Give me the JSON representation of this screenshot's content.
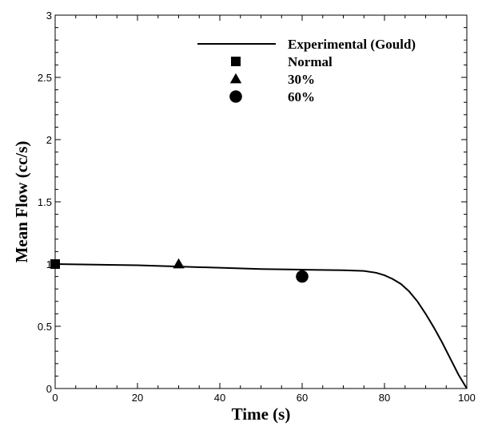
{
  "chart_data": {
    "type": "line",
    "title": "",
    "xlabel": "Time (s)",
    "ylabel": "Mean Flow (cc/s)",
    "xlim": [
      0,
      100
    ],
    "ylim": [
      0,
      3
    ],
    "x_ticks": [
      "0",
      "20",
      "40",
      "60",
      "80",
      "100"
    ],
    "y_ticks": [
      "0",
      "0.5",
      "1",
      "1.5",
      "2",
      "2.5",
      "3"
    ],
    "grid": false,
    "legend_position": "top-right",
    "series": [
      {
        "name": "Experimental (Gould)",
        "kind": "line",
        "color": "#000000",
        "x": [
          0,
          10,
          20,
          30,
          40,
          50,
          60,
          70,
          75,
          78,
          80,
          82,
          84,
          86,
          88,
          90,
          92,
          94,
          96,
          98,
          100
        ],
        "y": [
          1.0,
          0.995,
          0.99,
          0.98,
          0.97,
          0.96,
          0.955,
          0.95,
          0.945,
          0.93,
          0.91,
          0.88,
          0.84,
          0.78,
          0.7,
          0.6,
          0.49,
          0.37,
          0.24,
          0.11,
          0.0
        ]
      },
      {
        "name": "Normal",
        "kind": "marker",
        "marker": "square",
        "color": "#000000",
        "x": [
          0
        ],
        "y": [
          1.0
        ]
      },
      {
        "name": "30%",
        "kind": "marker",
        "marker": "triangle",
        "color": "#000000",
        "x": [
          30
        ],
        "y": [
          1.0
        ]
      },
      {
        "name": "60%",
        "kind": "marker",
        "marker": "circle",
        "color": "#000000",
        "x": [
          60
        ],
        "y": [
          0.9
        ]
      }
    ]
  }
}
